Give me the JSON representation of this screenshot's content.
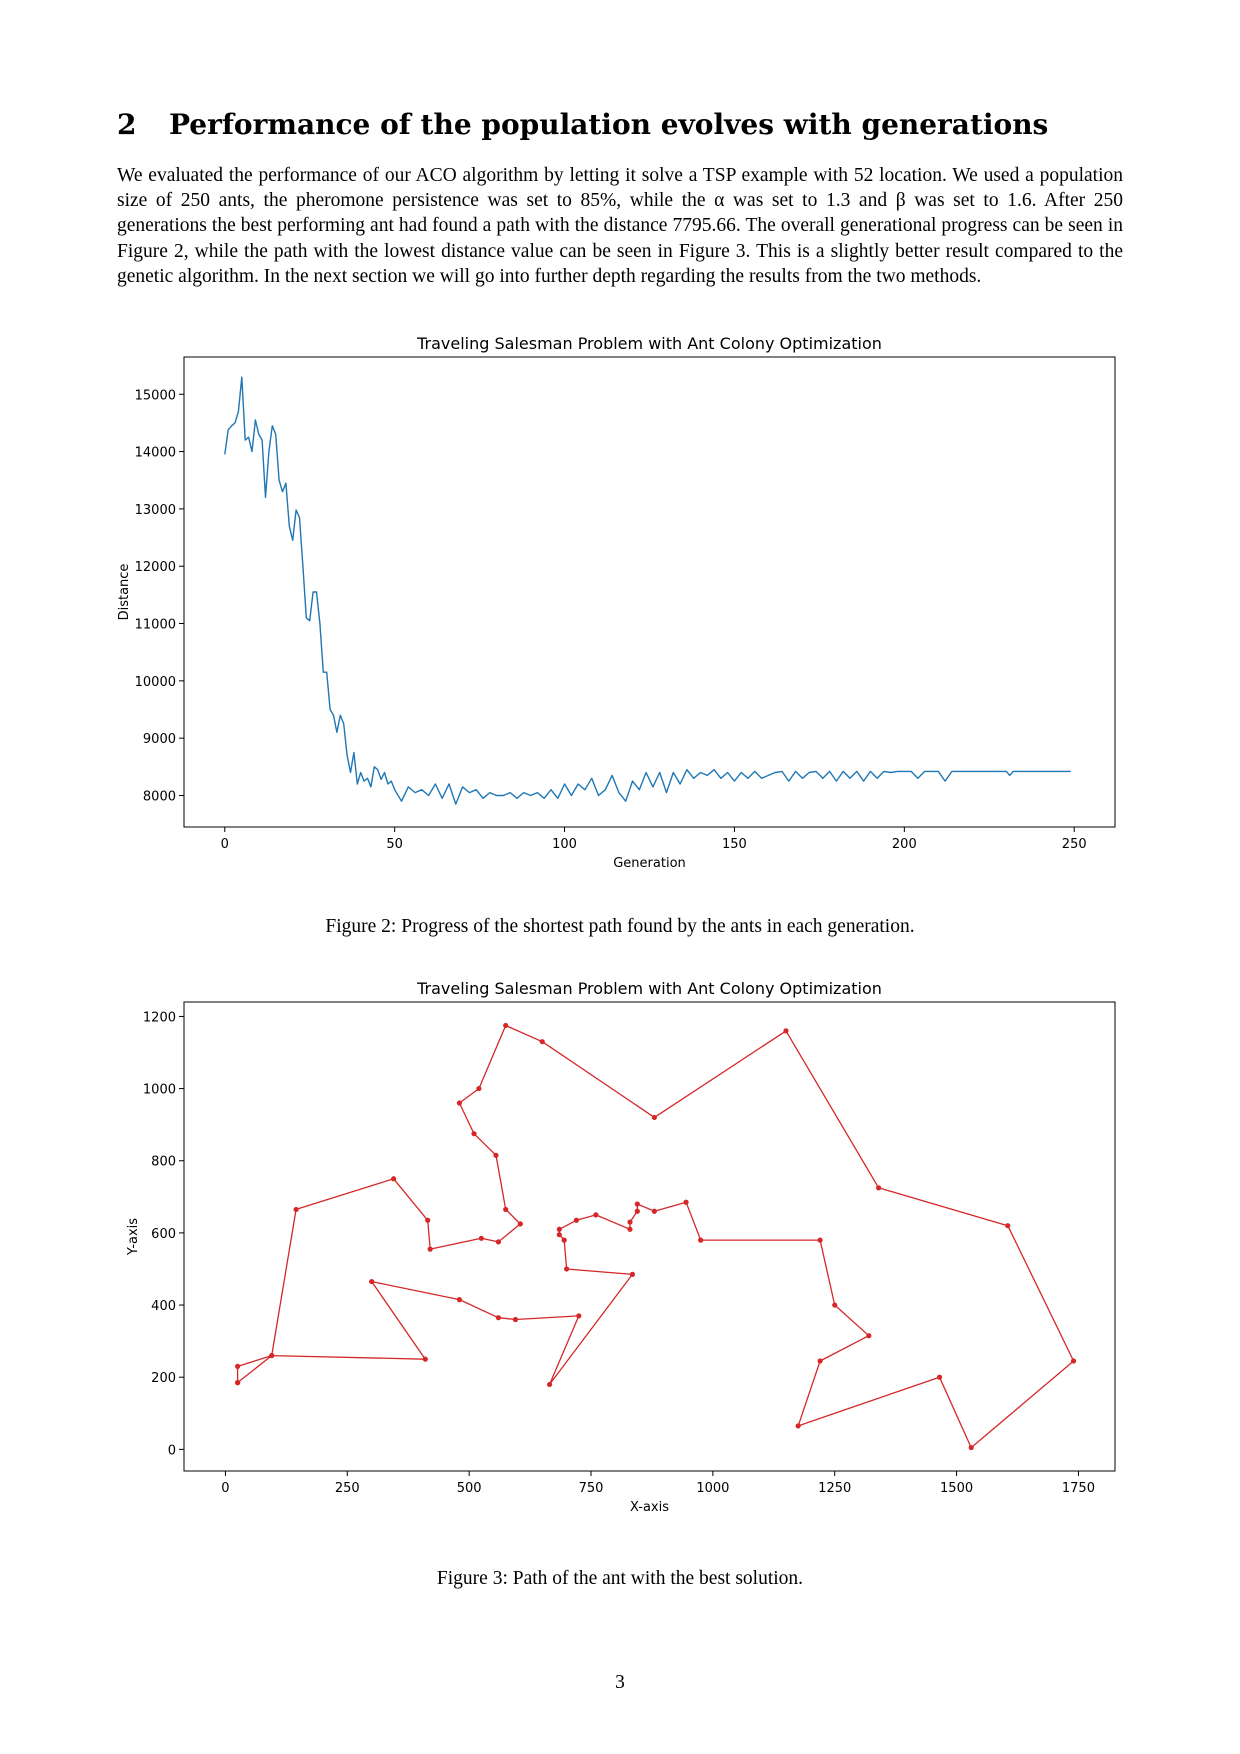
{
  "section": {
    "number": "2",
    "title": "Performance of the population evolves with generations"
  },
  "paragraph": "We evaluated the performance of our ACO algorithm by letting it solve a TSP example with 52 location. We used a population size of 250 ants, the pheromone persistence was set to 85%, while the α was set to 1.3 and β was set to 1.6. After 250 generations the best performing ant had found a path with the distance 7795.66. The overall generational progress can be seen in Figure 2, while the path with the lowest distance value can be seen in Figure 3. This is a slightly better result compared to the genetic algorithm. In the next section we will go into further depth regarding the results from the two methods.",
  "figure2": {
    "caption": "Figure 2: Progress of the shortest path found by the ants in each generation."
  },
  "figure3": {
    "caption": "Figure 3: Path of the ant with the best solution."
  },
  "page_number": "3",
  "chart_data": [
    {
      "type": "line",
      "title": "Traveling Salesman Problem with Ant Colony Optimization",
      "xlabel": "Generation",
      "ylabel": "Distance",
      "xlim": [
        -12,
        262
      ],
      "ylim": [
        7450,
        15650
      ],
      "xticks": [
        0,
        50,
        100,
        150,
        200,
        250
      ],
      "yticks": [
        8000,
        9000,
        10000,
        11000,
        12000,
        13000,
        14000,
        15000
      ],
      "color": "#1f77b4",
      "grid": false,
      "series": [
        {
          "x": [
            0,
            1,
            2,
            3,
            4,
            5,
            6,
            7,
            8,
            9,
            10,
            11,
            12,
            13,
            14,
            15,
            16,
            17,
            18,
            19,
            20,
            21,
            22,
            23,
            24,
            25,
            26,
            27,
            28,
            29,
            30,
            31,
            32,
            33,
            34,
            35,
            36,
            37,
            38,
            39,
            40,
            41,
            42,
            43,
            44,
            45,
            46,
            47,
            48,
            49,
            50,
            52,
            54,
            56,
            58,
            60,
            62,
            64,
            66,
            68,
            70,
            72,
            74,
            76,
            78,
            80,
            82,
            84,
            86,
            88,
            90,
            92,
            94,
            96,
            98,
            100,
            102,
            104,
            106,
            108,
            110,
            112,
            114,
            116,
            118,
            120,
            122,
            124,
            126,
            128,
            130,
            132,
            134,
            136,
            138,
            140,
            142,
            144,
            146,
            148,
            150,
            152,
            154,
            156,
            158,
            160,
            162,
            164,
            166,
            168,
            170,
            172,
            174,
            176,
            178,
            180,
            182,
            184,
            186,
            188,
            190,
            192,
            194,
            196,
            198,
            200,
            202,
            204,
            206,
            208,
            210,
            212,
            214,
            216,
            220,
            230,
            231,
            232,
            240,
            249
          ],
          "values": [
            13950,
            14380,
            14450,
            14500,
            14700,
            15300,
            14200,
            14250,
            14000,
            14550,
            14300,
            14200,
            13200,
            14000,
            14450,
            14300,
            13500,
            13300,
            13450,
            12700,
            12450,
            12980,
            12850,
            12000,
            11100,
            11050,
            11550,
            11550,
            11000,
            10150,
            10150,
            9500,
            9400,
            9100,
            9400,
            9250,
            8700,
            8400,
            8750,
            8200,
            8400,
            8250,
            8300,
            8150,
            8500,
            8450,
            8280,
            8400,
            8200,
            8250,
            8100,
            7900,
            8150,
            8050,
            8100,
            8000,
            8200,
            7950,
            8200,
            7850,
            8150,
            8050,
            8100,
            7950,
            8050,
            8000,
            8000,
            8050,
            7950,
            8050,
            8000,
            8050,
            7950,
            8100,
            7950,
            8200,
            8000,
            8200,
            8100,
            8300,
            8000,
            8100,
            8350,
            8050,
            7900,
            8250,
            8100,
            8400,
            8150,
            8400,
            8050,
            8400,
            8200,
            8450,
            8300,
            8400,
            8350,
            8450,
            8300,
            8400,
            8250,
            8400,
            8300,
            8420,
            8300,
            8350,
            8400,
            8420,
            8250,
            8420,
            8300,
            8400,
            8420,
            8300,
            8420,
            8250,
            8420,
            8300,
            8420,
            8250,
            8420,
            8300,
            8420,
            8400,
            8420,
            8420,
            8420,
            8300,
            8420,
            8420,
            8420,
            8250,
            8420,
            8420,
            8420,
            8420,
            8350,
            8420,
            8420,
            8420
          ]
        }
      ]
    },
    {
      "type": "line",
      "title": "Traveling Salesman Problem with Ant Colony Optimization",
      "xlabel": "X-axis",
      "ylabel": "Y-axis",
      "xlim": [
        -85,
        1825
      ],
      "ylim": [
        -60,
        1240
      ],
      "xticks": [
        0,
        250,
        500,
        750,
        1000,
        1250,
        1500,
        1750
      ],
      "yticks": [
        0,
        200,
        400,
        600,
        800,
        1000,
        1200
      ],
      "color": "#d62728",
      "markers": true,
      "grid": false,
      "series": [
        {
          "x": [
            25,
            25,
            95,
            410,
            300,
            480,
            560,
            595,
            725,
            665,
            835,
            700,
            695,
            685,
            685,
            720,
            760,
            830,
            830,
            845,
            845,
            880,
            945,
            975,
            1220,
            1250,
            1320,
            1220,
            1175,
            1465,
            1530,
            1740,
            1605,
            1340,
            1150,
            880,
            650,
            575,
            520,
            480,
            510,
            555,
            575,
            605,
            560,
            525,
            420,
            415,
            345,
            145,
            95,
            25
          ],
          "values": [
            185,
            230,
            260,
            250,
            465,
            415,
            365,
            360,
            370,
            180,
            485,
            500,
            580,
            595,
            610,
            635,
            650,
            610,
            630,
            660,
            680,
            660,
            685,
            580,
            580,
            400,
            315,
            245,
            65,
            200,
            5,
            245,
            620,
            725,
            1160,
            920,
            1130,
            1175,
            1000,
            960,
            875,
            815,
            665,
            625,
            575,
            585,
            555,
            635,
            750,
            665,
            260,
            185
          ]
        }
      ]
    }
  ]
}
